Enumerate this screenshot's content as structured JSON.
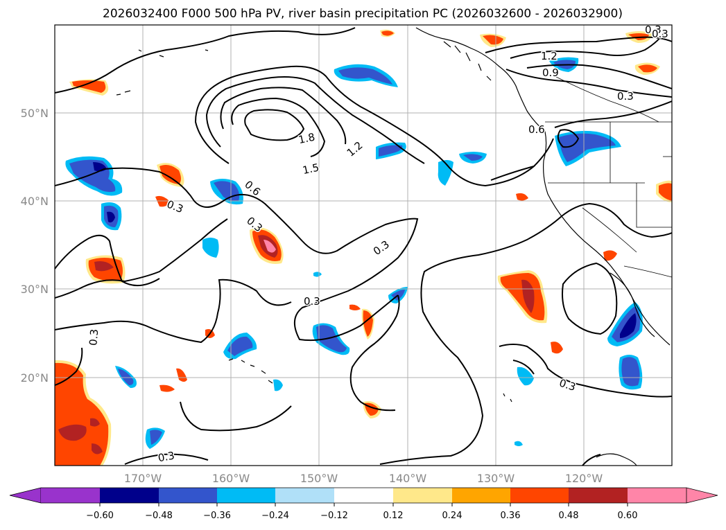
{
  "title": "2026032400 F000 500 hPa PV, river basin precipitation PC (2026032600 - 2026032900)",
  "map": {
    "lon_labels": [
      "170°W",
      "160°W",
      "150°W",
      "140°W",
      "130°W",
      "120°W"
    ],
    "lat_labels": [
      "50°N",
      "40°N",
      "30°N",
      "20°N"
    ],
    "contour_labels": [
      "0.3",
      "0.3",
      "0.3",
      "0.3",
      "0.3",
      "0.3",
      "0.3",
      "0.3",
      "0.6",
      "0.6",
      "0.9",
      "1.2",
      "1.2",
      "1.5",
      "1.8",
      "0.3",
      "0.3"
    ]
  },
  "colorbar": {
    "ticks": [
      "−0.60",
      "−0.48",
      "−0.36",
      "−0.24",
      "−0.12",
      "0.12",
      "0.24",
      "0.36",
      "0.48",
      "0.60"
    ],
    "colors": [
      "#9933cc",
      "#00008b",
      "#3355cc",
      "#00bbf5",
      "#b0e0f8",
      "#ffffff",
      "#ffe88a",
      "#ffa500",
      "#ff4500",
      "#b22222",
      "#ff85a8"
    ]
  },
  "colors": {
    "neg_strong": "#00008b",
    "neg_mid": "#3355cc",
    "neg_light": "#00bbf5",
    "pos_light": "#ffa500",
    "pos_mid": "#ff4500",
    "pos_strong": "#b22222",
    "pos_max": "#ff85a8"
  }
}
